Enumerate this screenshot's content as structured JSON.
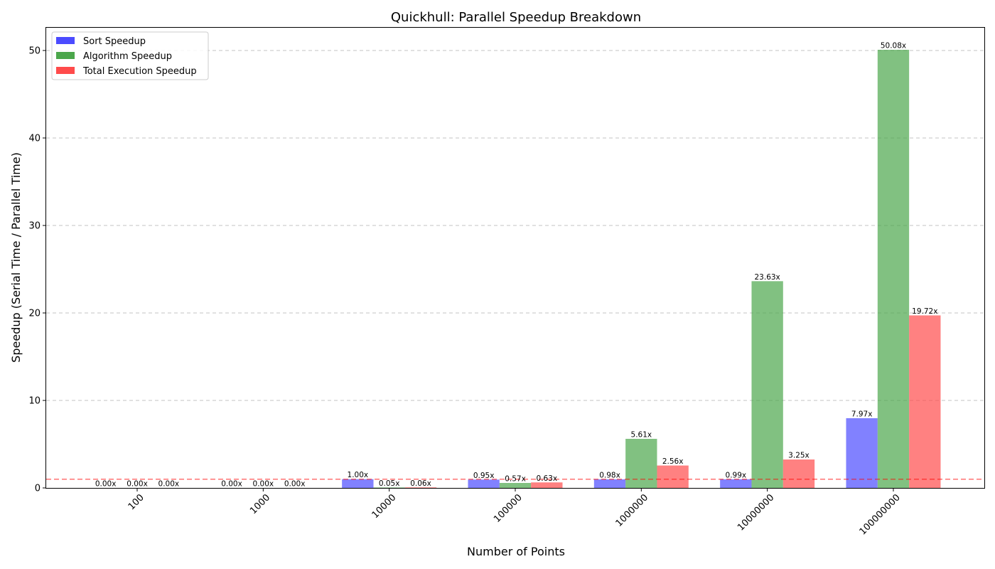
{
  "chart_data": {
    "type": "bar",
    "title": "Quickhull: Parallel Speedup Breakdown",
    "xlabel": "Number of Points",
    "ylabel": "Speedup (Serial Time / Parallel Time)",
    "categories": [
      "100",
      "1000",
      "10000",
      "100000",
      "1000000",
      "10000000",
      "100000000"
    ],
    "ylim": [
      0,
      52.6
    ],
    "yticks": [
      0,
      10,
      20,
      30,
      40,
      50
    ],
    "grid": "y-dashed",
    "legend_position": "top-left",
    "reference_line": {
      "y": 1.0,
      "color": "#ff0000",
      "style": "dashed"
    },
    "series": [
      {
        "name": "Sort Speedup",
        "color": "#4b4bff",
        "values": [
          0.0,
          0.0,
          1.0,
          0.95,
          0.98,
          0.99,
          7.97
        ],
        "labels": [
          "0.00x",
          "0.00x",
          "1.00x",
          "0.95x",
          "0.98x",
          "0.99x",
          "7.97x"
        ]
      },
      {
        "name": "Algorithm Speedup",
        "color": "#4ba64b",
        "values": [
          0.0,
          0.0,
          0.05,
          0.57,
          5.61,
          23.63,
          50.08
        ],
        "labels": [
          "0.00x",
          "0.00x",
          "0.05x",
          "0.57x",
          "5.61x",
          "23.63x",
          "50.08x"
        ]
      },
      {
        "name": "Total Execution Speedup",
        "color": "#ff4b4b",
        "values": [
          0.0,
          0.0,
          0.06,
          0.63,
          2.56,
          3.25,
          19.72
        ],
        "labels": [
          "0.00x",
          "0.00x",
          "0.06x",
          "0.63x",
          "2.56x",
          "3.25x",
          "19.72x"
        ]
      }
    ]
  }
}
